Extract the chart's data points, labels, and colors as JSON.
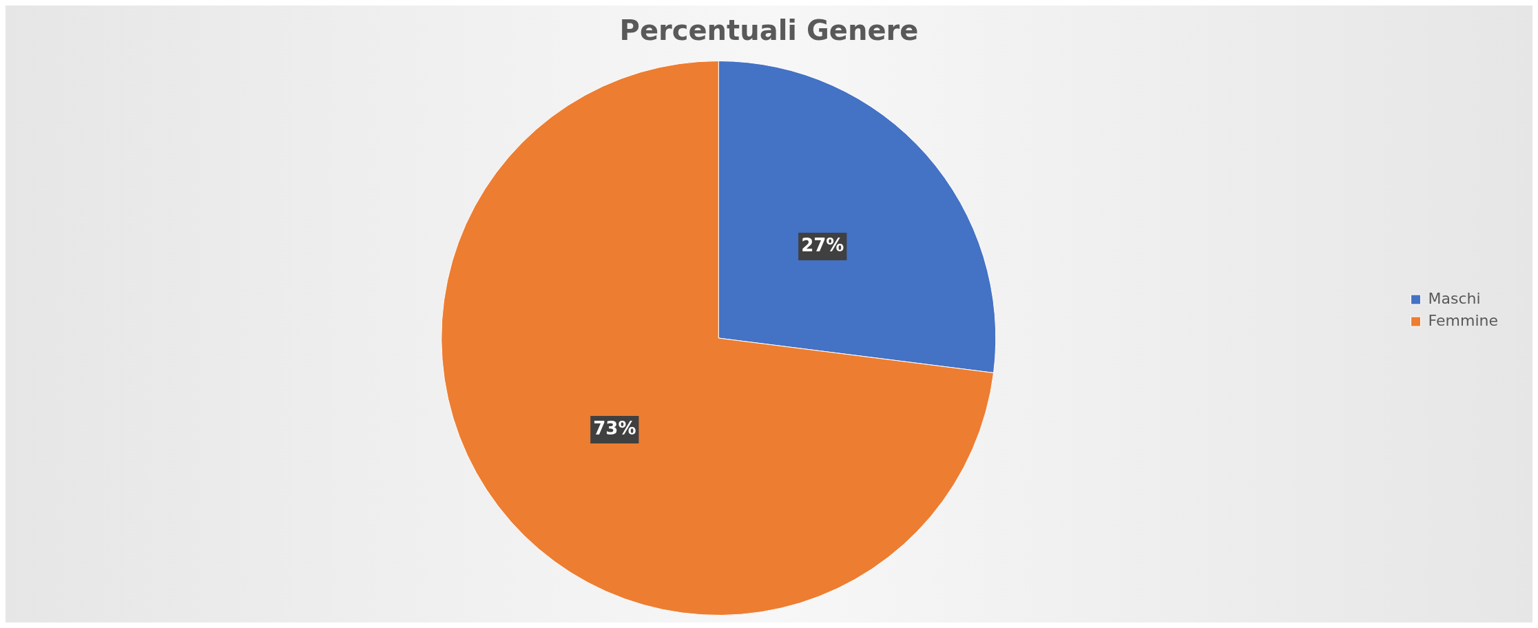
{
  "chart_data": {
    "type": "pie",
    "title": "Percentuali Genere",
    "categories": [
      "Maschi",
      "Femmine"
    ],
    "values": [
      27,
      73
    ],
    "colors": [
      "#4472c4",
      "#ed7d31"
    ],
    "value_labels": [
      "27%",
      "73%"
    ],
    "legend": "right"
  }
}
